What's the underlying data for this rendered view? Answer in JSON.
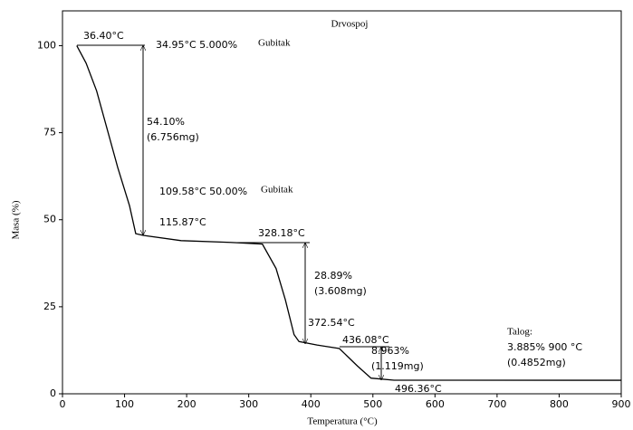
{
  "chart_data": {
    "type": "line",
    "title": "Drvospoj",
    "x_label": "Temperatura (°C)",
    "y_label": "Masa (%)",
    "xlim": [
      0,
      900
    ],
    "ylim": [
      0,
      110
    ],
    "xticks": [
      0,
      100,
      200,
      300,
      400,
      500,
      600,
      700,
      800,
      900
    ],
    "yticks": [
      0,
      25,
      50,
      75,
      100
    ],
    "series": [
      {
        "color": "#000000",
        "x": [
          23,
          38,
          55,
          89,
          108,
          118,
          130,
          191,
          270,
          322,
          344,
          359,
          373,
          381,
          410,
          446,
          475,
          497,
          534,
          600,
          900
        ],
        "values": [
          100,
          95,
          87,
          65,
          54,
          46,
          45.5,
          44,
          43.5,
          43,
          36,
          27,
          17,
          15,
          14,
          13,
          8,
          4.5,
          3.9,
          3.9,
          3.885
        ]
      }
    ],
    "annotations": [
      "36.40°C",
      "34.95°C 5.000%",
      "Gubitak",
      "54.10%",
      "(6.756mg)",
      "109.58°C 50.00%",
      "Gubitak",
      "115.87°C",
      "328.18°C",
      "28.89%",
      "(3.608mg)",
      "372.54°C",
      "436.08°C",
      "8.963%",
      "(1.119mg)",
      "496.36°C",
      "Talog:",
      "3.885% 900 °C",
      "(0.4852mg)"
    ]
  }
}
